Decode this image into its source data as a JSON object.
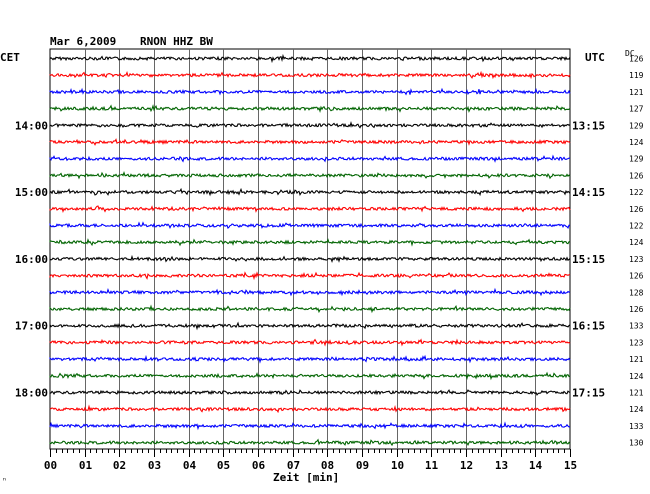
{
  "header": {
    "date": "Mar 6,2009",
    "station": "RNON HHZ BW"
  },
  "labels": {
    "left_tz": "CET",
    "right_tz": "UTC",
    "dc_header": "DC",
    "corner_mark": "ⁿ"
  },
  "chart_data": {
    "type": "line",
    "title": "Mar 6,2009   RNON HHZ BW",
    "xlabel": "Zeit [min]",
    "xlim": [
      0,
      15
    ],
    "x_ticks": [
      "00",
      "01",
      "02",
      "03",
      "04",
      "05",
      "06",
      "07",
      "08",
      "09",
      "10",
      "11",
      "12",
      "13",
      "14",
      "15"
    ],
    "left_hour_labels": [
      "14:00",
      "15:00",
      "16:00",
      "17:00",
      "18:00"
    ],
    "right_hour_labels": [
      "13:15",
      "14:15",
      "15:15",
      "16:15",
      "17:15"
    ],
    "dc_values": [
      "126",
      "119",
      "121",
      "127",
      "129",
      "124",
      "129",
      "126",
      "122",
      "126",
      "122",
      "124",
      "123",
      "126",
      "128",
      "126",
      "133",
      "123",
      "121",
      "124",
      "121",
      "124",
      "133",
      "130"
    ],
    "trace_colors": [
      "#000000",
      "#ff0000",
      "#0000ff",
      "#006400"
    ],
    "grid": true
  }
}
